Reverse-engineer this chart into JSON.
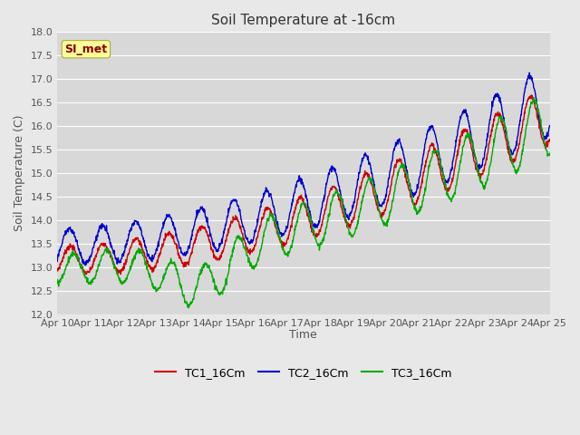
{
  "title": "Soil Temperature at -16cm",
  "ylabel": "Soil Temperature (C)",
  "xlabel": "Time",
  "ylim": [
    12.0,
    18.0
  ],
  "yticks": [
    12.0,
    12.5,
    13.0,
    13.5,
    14.0,
    14.5,
    15.0,
    15.5,
    16.0,
    16.5,
    17.0,
    17.5,
    18.0
  ],
  "fig_bg_color": "#e8e8e8",
  "plot_bg_color": "#d8d8d8",
  "grid_color": "#ffffff",
  "tc1_color": "#cc0000",
  "tc2_color": "#0000cc",
  "tc3_color": "#00aa00",
  "legend_labels": [
    "TC1_16Cm",
    "TC2_16Cm",
    "TC3_16Cm"
  ],
  "watermark_text": "SI_met",
  "watermark_fg": "#880000",
  "watermark_bg": "#ffff99",
  "watermark_edge": "#aaaa44",
  "x_start_day": 10,
  "x_end_day": 25,
  "x_tick_days": [
    10,
    11,
    12,
    13,
    14,
    15,
    16,
    17,
    18,
    19,
    20,
    21,
    22,
    23,
    24,
    25
  ],
  "title_fontsize": 11,
  "tick_fontsize": 8,
  "label_fontsize": 9,
  "legend_fontsize": 9
}
